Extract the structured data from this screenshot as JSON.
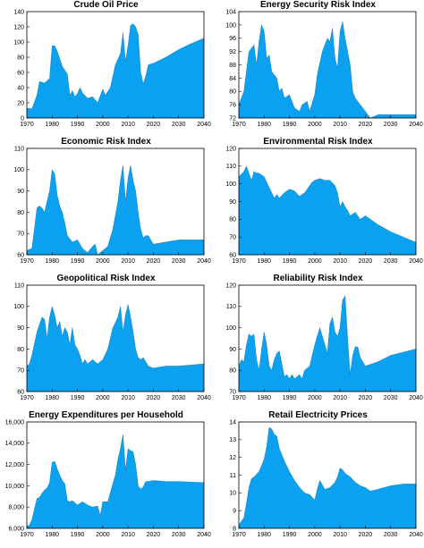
{
  "chart_data": [
    {
      "type": "area",
      "title": "Crude Oil Price",
      "xlim": [
        1970,
        2040
      ],
      "ylim": [
        0,
        140
      ],
      "xticks": [
        1970,
        1980,
        1990,
        2000,
        2010,
        2020,
        2030,
        2040
      ],
      "yticks": [
        0,
        20,
        40,
        60,
        80,
        100,
        120,
        140
      ],
      "fill": "#0aa2f0",
      "x": [
        1970,
        1972,
        1974,
        1975,
        1977,
        1979,
        1980,
        1981,
        1982,
        1984,
        1986,
        1987,
        1988,
        1989,
        1990,
        1991,
        1992,
        1994,
        1996,
        1998,
        2000,
        2001,
        2003,
        2005,
        2007,
        2008,
        2009,
        2010,
        2011,
        2012,
        2013,
        2014,
        2015,
        2016,
        2017,
        2018,
        2020,
        2025,
        2030,
        2035,
        2040
      ],
      "values": [
        13,
        12,
        30,
        48,
        46,
        52,
        95,
        95,
        88,
        68,
        58,
        30,
        36,
        28,
        32,
        40,
        33,
        26,
        28,
        20,
        38,
        30,
        40,
        70,
        85,
        112,
        75,
        95,
        122,
        124,
        120,
        110,
        60,
        45,
        55,
        70,
        72,
        80,
        90,
        98,
        105
      ]
    },
    {
      "type": "area",
      "title": "Energy Security Risk Index",
      "xlim": [
        1970,
        2040
      ],
      "ylim": [
        72,
        104
      ],
      "xticks": [
        1970,
        1980,
        1990,
        2000,
        2010,
        2020,
        2030,
        2040
      ],
      "yticks": [
        72,
        76,
        80,
        84,
        88,
        92,
        96,
        100,
        104
      ],
      "fill": "#0aa2f0",
      "x": [
        1970,
        1972,
        1973,
        1974,
        1976,
        1977,
        1978,
        1979,
        1980,
        1981,
        1982,
        1983,
        1985,
        1986,
        1987,
        1988,
        1990,
        1991,
        1992,
        1994,
        1995,
        1997,
        1998,
        2000,
        2001,
        2003,
        2005,
        2006,
        2007,
        2008,
        2009,
        2010,
        2011,
        2012,
        2013,
        2014,
        2015,
        2016,
        2017,
        2018,
        2020,
        2022,
        2025,
        2030,
        2040
      ],
      "values": [
        76,
        80,
        86,
        92,
        94,
        88,
        95,
        100,
        98,
        90,
        91,
        86,
        84,
        80,
        81,
        78,
        79,
        77,
        75,
        74,
        76,
        77,
        74,
        79,
        85,
        92,
        96,
        95,
        99,
        90,
        87,
        98,
        101,
        96,
        92,
        88,
        80,
        78,
        77,
        76,
        74,
        72,
        73,
        73,
        73
      ]
    },
    {
      "type": "area",
      "title": "Economic Risk Index",
      "xlim": [
        1970,
        2040
      ],
      "ylim": [
        60,
        110
      ],
      "xticks": [
        1970,
        1980,
        1990,
        2000,
        2010,
        2020,
        2030,
        2040
      ],
      "yticks": [
        60,
        70,
        80,
        90,
        100,
        110
      ],
      "fill": "#0aa2f0",
      "x": [
        1970,
        1972,
        1973,
        1974,
        1975,
        1976,
        1977,
        1978,
        1979,
        1980,
        1981,
        1982,
        1983,
        1984,
        1985,
        1986,
        1988,
        1990,
        1992,
        1994,
        1996,
        1997,
        1998,
        2000,
        2002,
        2004,
        2006,
        2007,
        2008,
        2009,
        2010,
        2011,
        2012,
        2013,
        2014,
        2015,
        2016,
        2017,
        2018,
        2020,
        2025,
        2030,
        2040
      ],
      "values": [
        62,
        63,
        72,
        82,
        83,
        82,
        80,
        85,
        90,
        100,
        98,
        88,
        83,
        80,
        75,
        69,
        66,
        67,
        63,
        61,
        64,
        65,
        60,
        62,
        64,
        72,
        85,
        95,
        102,
        85,
        96,
        102,
        95,
        90,
        80,
        72,
        68,
        69,
        69,
        65,
        66,
        67,
        67
      ]
    },
    {
      "type": "area",
      "title": "Environmental Risk Index",
      "xlim": [
        1970,
        2040
      ],
      "ylim": [
        60,
        120
      ],
      "xticks": [
        1970,
        1980,
        1990,
        2000,
        2010,
        2020,
        2030,
        2040
      ],
      "yticks": [
        60,
        70,
        80,
        90,
        100,
        110,
        120
      ],
      "fill": "#0aa2f0",
      "x": [
        1970,
        1972,
        1973,
        1974,
        1975,
        1976,
        1977,
        1978,
        1980,
        1982,
        1984,
        1985,
        1986,
        1988,
        1990,
        1992,
        1994,
        1996,
        1998,
        1999,
        2000,
        2002,
        2004,
        2006,
        2008,
        2009,
        2010,
        2011,
        2012,
        2013,
        2014,
        2016,
        2018,
        2020,
        2025,
        2030,
        2035,
        2040
      ],
      "values": [
        104,
        107,
        110,
        106,
        102,
        107,
        106,
        106,
        104,
        98,
        92,
        94,
        92,
        95,
        97,
        96,
        93,
        95,
        99,
        101,
        102,
        103,
        102,
        102,
        99,
        95,
        87,
        90,
        87,
        85,
        82,
        84,
        80,
        82,
        77,
        73,
        70,
        67
      ]
    },
    {
      "type": "area",
      "title": "Geopolitical Risk Index",
      "xlim": [
        1970,
        2040
      ],
      "ylim": [
        60,
        110
      ],
      "xticks": [
        1970,
        1980,
        1990,
        2000,
        2010,
        2020,
        2030,
        2040
      ],
      "yticks": [
        60,
        70,
        80,
        90,
        100,
        110
      ],
      "fill": "#0aa2f0",
      "x": [
        1970,
        1971,
        1972,
        1974,
        1976,
        1977,
        1978,
        1979,
        1980,
        1981,
        1982,
        1983,
        1984,
        1985,
        1986,
        1987,
        1988,
        1989,
        1990,
        1991,
        1992,
        1993,
        1994,
        1996,
        1998,
        2000,
        2002,
        2004,
        2006,
        2007,
        2008,
        2009,
        2010,
        2011,
        2012,
        2013,
        2014,
        2015,
        2016,
        2018,
        2020,
        2025,
        2030,
        2040
      ],
      "values": [
        72,
        73,
        77,
        88,
        95,
        94,
        85,
        95,
        100,
        96,
        90,
        93,
        86,
        90,
        88,
        82,
        90,
        82,
        80,
        77,
        73,
        75,
        73,
        75,
        73,
        75,
        80,
        90,
        95,
        100,
        88,
        96,
        101,
        95,
        88,
        80,
        76,
        75,
        76,
        72,
        71,
        72,
        72,
        73
      ]
    },
    {
      "type": "area",
      "title": "Reliability Risk Index",
      "xlim": [
        1970,
        2040
      ],
      "ylim": [
        70,
        120
      ],
      "xticks": [
        1970,
        1980,
        1990,
        2000,
        2010,
        2020,
        2030,
        2040
      ],
      "yticks": [
        70,
        80,
        90,
        100,
        110,
        120
      ],
      "fill": "#0aa2f0",
      "x": [
        1970,
        1971,
        1972,
        1973,
        1974,
        1975,
        1976,
        1977,
        1978,
        1979,
        1980,
        1981,
        1982,
        1983,
        1984,
        1985,
        1986,
        1988,
        1989,
        1990,
        1991,
        1992,
        1994,
        1995,
        1996,
        1998,
        2000,
        2002,
        2004,
        2005,
        2006,
        2007,
        2008,
        2009,
        2010,
        2011,
        2012,
        2013,
        2014,
        2015,
        2016,
        2017,
        2018,
        2020,
        2025,
        2030,
        2040
      ],
      "values": [
        82,
        85,
        84,
        92,
        97,
        96,
        97,
        85,
        80,
        90,
        98,
        92,
        82,
        80,
        85,
        88,
        89,
        77,
        78,
        76,
        78,
        76,
        78,
        76,
        80,
        82,
        92,
        100,
        92,
        88,
        102,
        105,
        98,
        96,
        100,
        113,
        115,
        95,
        78,
        87,
        91,
        91,
        86,
        82,
        84,
        87,
        90
      ]
    },
    {
      "type": "area",
      "title": "Energy Expenditures per Household",
      "xlim": [
        1970,
        2040
      ],
      "ylim": [
        6000,
        16000
      ],
      "xticks": [
        1970,
        1980,
        1990,
        2000,
        2010,
        2020,
        2030,
        2040
      ],
      "yticks": [
        6000,
        8000,
        10000,
        12000,
        14000,
        16000
      ],
      "ytick_labels": [
        "6,000",
        "8,000",
        "10,000",
        "12,000",
        "14,000",
        "16,000"
      ],
      "fill": "#0aa2f0",
      "x": [
        1970,
        1971,
        1972,
        1974,
        1975,
        1976,
        1977,
        1978,
        1979,
        1980,
        1981,
        1982,
        1983,
        1984,
        1985,
        1986,
        1987,
        1988,
        1990,
        1992,
        1994,
        1996,
        1998,
        1999,
        2000,
        2002,
        2004,
        2005,
        2006,
        2007,
        2008,
        2009,
        2010,
        2011,
        2012,
        2013,
        2014,
        2015,
        2016,
        2017,
        2018,
        2020,
        2025,
        2030,
        2040
      ],
      "values": [
        6200,
        6300,
        6800,
        8800,
        8900,
        9300,
        9600,
        9800,
        10300,
        12200,
        12300,
        11600,
        11000,
        10500,
        10200,
        8600,
        8500,
        8600,
        8200,
        8500,
        8200,
        8000,
        8100,
        7200,
        8500,
        8500,
        10200,
        11000,
        12500,
        13500,
        14800,
        11500,
        13500,
        13300,
        13200,
        12000,
        10000,
        9700,
        9900,
        10400,
        10400,
        10500,
        10400,
        10400,
        10300
      ]
    },
    {
      "type": "area",
      "title": "Retail Electricity Prices",
      "xlim": [
        1970,
        2040
      ],
      "ylim": [
        8,
        14
      ],
      "xticks": [
        1970,
        1980,
        1990,
        2000,
        2010,
        2020,
        2030,
        2040
      ],
      "yticks": [
        8,
        9,
        10,
        11,
        12,
        13,
        14
      ],
      "fill": "#0aa2f0",
      "x": [
        1970,
        1972,
        1973,
        1974,
        1975,
        1976,
        1978,
        1980,
        1981,
        1982,
        1983,
        1984,
        1985,
        1986,
        1988,
        1990,
        1992,
        1994,
        1996,
        1998,
        2000,
        2001,
        2002,
        2004,
        2006,
        2008,
        2009,
        2010,
        2011,
        2012,
        2014,
        2016,
        2018,
        2020,
        2022,
        2025,
        2030,
        2035,
        2040
      ],
      "values": [
        8.2,
        8.6,
        9.4,
        10.3,
        10.8,
        10.9,
        11.2,
        11.9,
        12.6,
        13.7,
        13.6,
        13.3,
        13.2,
        12.5,
        11.8,
        11.2,
        10.7,
        10.3,
        10.0,
        9.9,
        9.6,
        10.2,
        10.7,
        10.2,
        10.3,
        10.6,
        10.9,
        11.4,
        11.3,
        11.1,
        10.9,
        10.6,
        10.4,
        10.3,
        10.1,
        10.2,
        10.4,
        10.5,
        10.5
      ]
    }
  ]
}
